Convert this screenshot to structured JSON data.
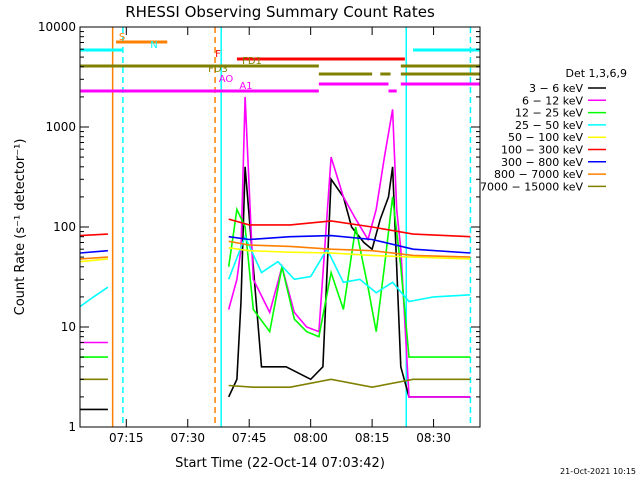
{
  "chart_data": {
    "type": "line",
    "title": "RHESSI Observing Summary Count Rates",
    "xlabel": "Start Time (22-Oct-14 07:03:42)",
    "ylabel": "Count Rate (s⁻¹ detector⁻¹)",
    "yscale": "log",
    "xlim": [
      "07:03:42",
      "08:41:20"
    ],
    "ylim": [
      1,
      10000
    ],
    "x_ticks": [
      "07:15",
      "07:30",
      "07:45",
      "08:00",
      "08:15",
      "08:30"
    ],
    "y_ticks": [
      "1",
      "10",
      "100",
      "1000",
      "10000"
    ],
    "detectors_label": "Det 1,3,6,9",
    "footer": "21-Oct-2021 10:15",
    "grid": false,
    "legend_position": "right",
    "series": [
      {
        "name": "3 − 6 keV",
        "color": "#000000",
        "x": [
          "07:03:42",
          "07:10:30",
          "07:12:00",
          "07:40:00",
          "07:42:00",
          "07:43:00",
          "07:44:00",
          "07:48:00",
          "07:54:00",
          "08:00:00",
          "08:03:00",
          "08:05:00",
          "08:08:00",
          "08:10:00",
          "08:13:00",
          "08:15:00",
          "08:17:00",
          "08:19:00",
          "08:20:00",
          "08:22:00",
          "08:24:00",
          "08:30:00",
          "08:39:00"
        ],
        "values": [
          1.5,
          1.5,
          null,
          2,
          3,
          18,
          400,
          4,
          4,
          3,
          4,
          300,
          200,
          100,
          70,
          60,
          120,
          200,
          400,
          4,
          2,
          2,
          2
        ]
      },
      {
        "name": "6 − 12 keV",
        "color": "#ff00ff",
        "x": [
          "07:03:42",
          "07:10:30",
          "07:12:00",
          "07:40:00",
          "07:42:00",
          "07:43:00",
          "07:44:00",
          "07:46:00",
          "07:50:00",
          "07:53:00",
          "07:56:00",
          "07:59:00",
          "08:02:00",
          "08:05:00",
          "08:08:00",
          "08:11:00",
          "08:14:00",
          "08:16:00",
          "08:18:00",
          "08:20:00",
          "08:21:00",
          "08:22:00",
          "08:24:00",
          "08:30:00",
          "08:39:00"
        ],
        "values": [
          7,
          7,
          null,
          15,
          30,
          60,
          2000,
          30,
          14,
          40,
          14,
          10,
          9,
          500,
          200,
          120,
          75,
          150,
          500,
          1500,
          150,
          60,
          2,
          2,
          2
        ]
      },
      {
        "name": "12 − 25 keV",
        "color": "#00ff00",
        "x": [
          "07:03:42",
          "07:10:30",
          "07:12:00",
          "07:40:00",
          "07:42:00",
          "07:44:00",
          "07:46:00",
          "07:50:00",
          "07:53:00",
          "07:56:00",
          "07:59:00",
          "08:02:00",
          "08:05:00",
          "08:08:00",
          "08:11:00",
          "08:14:00",
          "08:16:00",
          "08:18:00",
          "08:20:00",
          "08:22:00",
          "08:24:00",
          "08:30:00",
          "08:39:00"
        ],
        "values": [
          5,
          5,
          null,
          40,
          150,
          100,
          15,
          9,
          40,
          12,
          9,
          8,
          35,
          15,
          100,
          25,
          9,
          40,
          200,
          40,
          5,
          5,
          5
        ]
      },
      {
        "name": "25 − 50 keV",
        "color": "#00ffff",
        "x": [
          "07:03:42",
          "07:07:00",
          "07:10:30",
          "07:12:00",
          "07:40:00",
          "07:44:00",
          "07:48:00",
          "07:52:00",
          "07:56:00",
          "08:00:00",
          "08:04:00",
          "08:08:00",
          "08:12:00",
          "08:16:00",
          "08:20:00",
          "08:24:00",
          "08:30:00",
          "08:39:00"
        ],
        "values": [
          16,
          20,
          25,
          null,
          30,
          80,
          35,
          45,
          30,
          32,
          60,
          28,
          30,
          22,
          28,
          18,
          20,
          21
        ]
      },
      {
        "name": "50 − 100 keV",
        "color": "#ffff00",
        "x": [
          "07:03:42",
          "07:10:30",
          "07:12:00",
          "07:40:00",
          "07:45:00",
          "07:55:00",
          "08:05:00",
          "08:15:00",
          "08:25:00",
          "08:39:00"
        ],
        "values": [
          45,
          48,
          null,
          62,
          58,
          56,
          55,
          52,
          50,
          48
        ]
      },
      {
        "name": "100 − 300 keV",
        "color": "#ff0000",
        "x": [
          "07:03:42",
          "07:10:30",
          "07:12:00",
          "07:40:00",
          "07:45:00",
          "07:55:00",
          "08:05:00",
          "08:15:00",
          "08:25:00",
          "08:39:00"
        ],
        "values": [
          82,
          85,
          null,
          120,
          105,
          105,
          115,
          100,
          85,
          80
        ]
      },
      {
        "name": "300 − 800 keV",
        "color": "#0000ff",
        "x": [
          "07:03:42",
          "07:10:30",
          "07:12:00",
          "07:40:00",
          "07:45:00",
          "07:55:00",
          "08:05:00",
          "08:15:00",
          "08:25:00",
          "08:39:00"
        ],
        "values": [
          55,
          58,
          null,
          80,
          75,
          80,
          82,
          75,
          60,
          55
        ]
      },
      {
        "name": "800 − 7000 keV",
        "color": "#ff8000",
        "x": [
          "07:03:42",
          "07:10:30",
          "07:12:00",
          "07:40:00",
          "07:45:00",
          "07:55:00",
          "08:05:00",
          "08:15:00",
          "08:25:00",
          "08:39:00"
        ],
        "values": [
          48,
          50,
          null,
          72,
          66,
          64,
          60,
          58,
          52,
          50
        ]
      },
      {
        "name": "7000 − 15000 keV",
        "color": "#808000",
        "x": [
          "07:03:42",
          "07:10:30",
          "07:12:00",
          "07:40:00",
          "07:46:00",
          "07:55:00",
          "08:05:00",
          "08:15:00",
          "08:25:00",
          "08:39:00"
        ],
        "values": [
          3,
          3,
          null,
          2.6,
          2.5,
          2.5,
          3,
          2.5,
          3,
          3
        ]
      }
    ],
    "flag_bars": [
      {
        "label": "S",
        "color": "#ff8000",
        "segments": [
          [
            "07:12:30",
            "07:25:00"
          ]
        ]
      },
      {
        "label": "N",
        "color": "#00ffff",
        "segments": [
          [
            "07:03:42",
            "07:14:00"
          ],
          [
            "08:25:00",
            "08:41:20"
          ]
        ]
      },
      {
        "label": "F",
        "color": "#ff0000",
        "segments": [
          [
            "07:42:00",
            "08:23:00"
          ]
        ]
      },
      {
        "label": "FD1",
        "color": "#808000",
        "segments": [
          [
            "07:03:42",
            "08:02:00"
          ],
          [
            "08:22:00",
            "08:41:20"
          ]
        ]
      },
      {
        "label": "FD3",
        "color": "#808000",
        "segments": [
          [
            "08:02:00",
            "08:15:00"
          ],
          [
            "08:17:00",
            "08:19:30"
          ],
          [
            "08:22:00",
            "08:41:20"
          ]
        ]
      },
      {
        "label": "AO",
        "color": "#ff00ff",
        "segments": [
          [
            "08:02:00",
            "08:19:00"
          ],
          [
            "08:22:00",
            "08:41:20"
          ]
        ]
      },
      {
        "label": "A1",
        "color": "#ff00ff",
        "segments": [
          [
            "07:03:42",
            "08:02:00"
          ],
          [
            "08:19:00",
            "08:21:00"
          ]
        ]
      }
    ],
    "markers": [
      {
        "time": "07:11:40",
        "color": "#ff8000",
        "style": "solid"
      },
      {
        "time": "07:14:10",
        "color": "#00ffff",
        "style": "dashed"
      },
      {
        "time": "07:36:40",
        "color": "#ff8000",
        "style": "dashed"
      },
      {
        "time": "07:38:10",
        "color": "#00ffff",
        "style": "solid"
      },
      {
        "time": "08:23:20",
        "color": "#00ffff",
        "style": "solid"
      },
      {
        "time": "08:39:00",
        "color": "#00ffff",
        "style": "dashed"
      }
    ]
  }
}
